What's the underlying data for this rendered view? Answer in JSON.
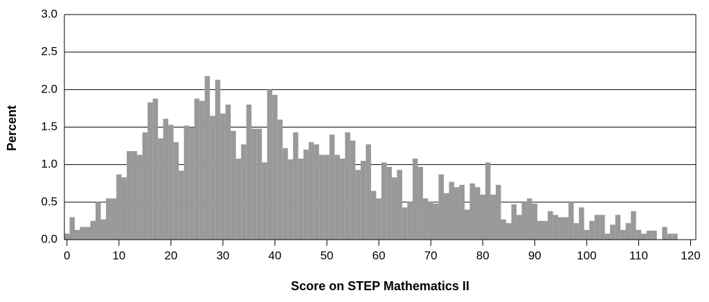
{
  "chart_data": {
    "type": "histogram",
    "x_label": "Score on STEP Mathematics II",
    "y_label": "Percent",
    "color": "#999999",
    "grid": true,
    "bins": [
      -0.5,
      0.5,
      1.5,
      2.5,
      3.5,
      4.5,
      5.5,
      6.5,
      7.5,
      8.5,
      9.5,
      10.5,
      11.5,
      12.5,
      13.5,
      14.5,
      15.5,
      16.5,
      17.5,
      18.5,
      19.5,
      20.5,
      21.5,
      22.5,
      23.5,
      24.5,
      25.5,
      26.5,
      27.5,
      28.5,
      29.5,
      30.5,
      31.5,
      32.5,
      33.5,
      34.5,
      35.5,
      36.5,
      37.5,
      38.5,
      39.5,
      40.5,
      41.5,
      42.5,
      43.5,
      44.5,
      45.5,
      46.5,
      47.5,
      48.5,
      49.5,
      50.5,
      51.5,
      52.5,
      53.5,
      54.5,
      55.5,
      56.5,
      57.5,
      58.5,
      59.5,
      60.5,
      61.5,
      62.5,
      63.5,
      64.5,
      65.5,
      66.5,
      67.5,
      68.5,
      69.5,
      70.5,
      71.5,
      72.5,
      73.5,
      74.5,
      75.5,
      76.5,
      77.5,
      78.5,
      79.5,
      80.5,
      81.5,
      82.5,
      83.5,
      84.5,
      85.5,
      86.5,
      87.5,
      88.5,
      89.5,
      90.5,
      91.5,
      92.5,
      93.5,
      94.5,
      95.5,
      96.5,
      97.5,
      98.5,
      99.5,
      100.5,
      101.5,
      102.5,
      103.5,
      104.5,
      105.5,
      106.5,
      107.5,
      108.5,
      109.5,
      110.5,
      111.5,
      112.5,
      113.5,
      114.5,
      115.5,
      116.5,
      117.5
    ],
    "values": [
      0.08,
      0.3,
      0.13,
      0.17,
      0.17,
      0.25,
      0.5,
      0.27,
      0.55,
      0.55,
      0.87,
      0.83,
      1.18,
      1.18,
      1.13,
      1.43,
      1.83,
      1.88,
      1.35,
      1.61,
      1.53,
      1.3,
      0.92,
      1.52,
      1.5,
      1.88,
      1.85,
      2.18,
      1.65,
      2.13,
      1.68,
      1.8,
      1.45,
      1.08,
      1.27,
      1.8,
      1.48,
      1.48,
      1.03,
      2.0,
      1.93,
      1.6,
      1.22,
      1.07,
      1.43,
      1.08,
      1.2,
      1.3,
      1.27,
      1.13,
      1.13,
      1.4,
      1.13,
      1.08,
      1.43,
      1.32,
      0.93,
      1.05,
      1.27,
      0.65,
      0.55,
      1.03,
      0.97,
      0.83,
      0.93,
      0.43,
      0.51,
      1.08,
      0.97,
      0.55,
      0.51,
      0.48,
      0.87,
      0.62,
      0.77,
      0.7,
      0.73,
      0.4,
      0.75,
      0.7,
      0.6,
      1.03,
      0.6,
      0.73,
      0.27,
      0.22,
      0.47,
      0.33,
      0.5,
      0.55,
      0.48,
      0.25,
      0.25,
      0.38,
      0.33,
      0.3,
      0.3,
      0.5,
      0.22,
      0.43,
      0.13,
      0.25,
      0.33,
      0.33,
      0.08,
      0.2,
      0.33,
      0.13,
      0.22,
      0.38,
      0.13,
      0.08,
      0.12,
      0.12,
      0,
      0.17,
      0.08,
      0.08
    ],
    "xlim": [
      -0.5,
      121
    ],
    "xticks": [
      0,
      10,
      20,
      30,
      40,
      50,
      60,
      70,
      80,
      90,
      100,
      110,
      120
    ],
    "ylim": [
      0,
      3
    ],
    "yticks": [
      {
        "value": 0,
        "label": "0.0"
      },
      0.5,
      {
        "value": 1,
        "label": "1.0"
      },
      1.5,
      {
        "value": 2,
        "label": "2.0"
      },
      2.5,
      {
        "value": 3,
        "label": "3.0"
      }
    ]
  }
}
